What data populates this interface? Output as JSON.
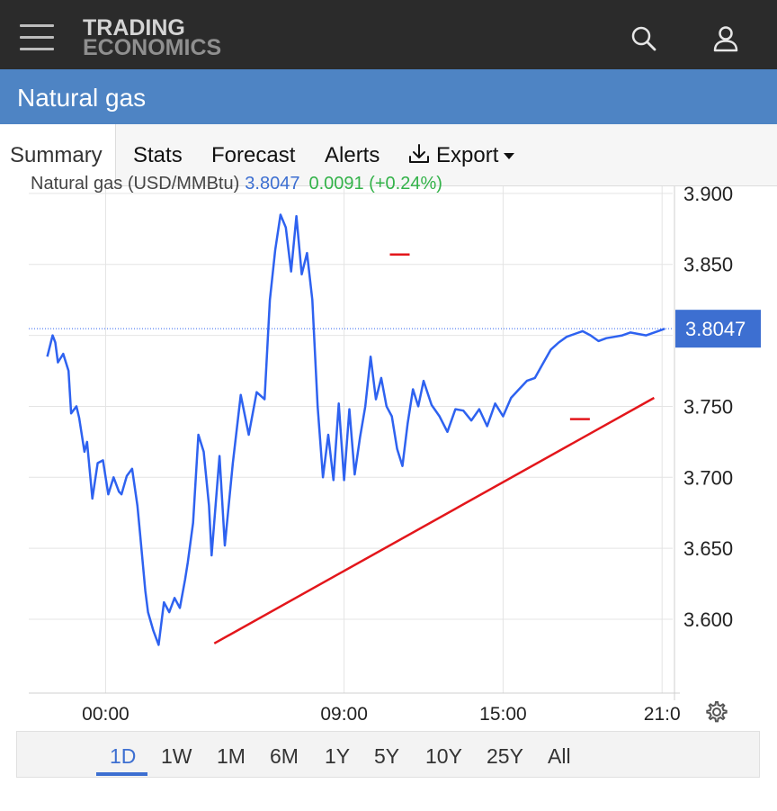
{
  "header": {
    "logo_line1": "TRADING",
    "logo_line2": "ECONOMICS",
    "icons": [
      "menu-icon",
      "search-icon",
      "user-icon"
    ]
  },
  "page_title": "Natural gas",
  "tabs": [
    {
      "label": "Summary",
      "active": true
    },
    {
      "label": "Stats"
    },
    {
      "label": "Forecast"
    },
    {
      "label": "Alerts"
    },
    {
      "label": "Export",
      "icon": "download-icon",
      "dropdown": true
    }
  ],
  "legend": {
    "name": "Natural gas (USD/MMBtu)",
    "price": "3.8047",
    "change": "0.0091 (+0.24%)"
  },
  "colors": {
    "header_bg": "#2b2b2b",
    "title_bg": "#4e84c4",
    "line": "#2e62f0",
    "trendline": "#e3161b",
    "price_label_bg": "#3d6fd1",
    "change_positive": "#33b249"
  },
  "chart_data": {
    "type": "line",
    "series": [
      {
        "name": "Natural gas (USD/MMBtu)",
        "x": [
          -2.2,
          -2.0,
          -1.9,
          -1.8,
          -1.6,
          -1.4,
          -1.3,
          -1.1,
          -1.0,
          -0.8,
          -0.7,
          -0.5,
          -0.3,
          -0.1,
          0.1,
          0.3,
          0.5,
          0.6,
          0.8,
          1.0,
          1.2,
          1.3,
          1.5,
          1.6,
          1.8,
          2.0,
          2.2,
          2.4,
          2.6,
          2.8,
          3.0,
          3.1,
          3.3,
          3.5,
          3.7,
          3.9,
          4.0,
          4.3,
          4.5,
          4.8,
          5.1,
          5.4,
          5.7,
          6.0,
          6.2,
          6.4,
          6.6,
          6.8,
          7.0,
          7.2,
          7.4,
          7.6,
          7.8,
          8.0,
          8.2,
          8.4,
          8.6,
          8.8,
          9.0,
          9.2,
          9.4,
          9.6,
          9.8,
          10.0,
          10.2,
          10.4,
          10.6,
          10.8,
          11.0,
          11.2,
          11.4,
          11.6,
          11.8,
          12.0,
          12.3,
          12.6,
          12.9,
          13.2,
          13.5,
          13.8,
          14.1,
          14.4,
          14.7,
          15.0,
          15.3,
          15.6,
          15.9,
          16.2,
          16.5,
          16.8,
          17.1,
          17.4,
          17.7,
          18.0,
          18.3,
          18.6,
          18.9,
          19.2,
          19.5,
          19.8,
          20.1,
          20.4,
          20.7,
          21.0,
          21.1
        ],
        "y": [
          3.785,
          3.8,
          3.795,
          3.781,
          3.787,
          3.775,
          3.745,
          3.75,
          3.742,
          3.718,
          3.725,
          3.685,
          3.71,
          3.712,
          3.688,
          3.7,
          3.69,
          3.688,
          3.701,
          3.706,
          3.68,
          3.66,
          3.62,
          3.605,
          3.592,
          3.582,
          3.612,
          3.605,
          3.615,
          3.608,
          3.628,
          3.64,
          3.668,
          3.73,
          3.718,
          3.68,
          3.645,
          3.715,
          3.652,
          3.71,
          3.758,
          3.73,
          3.76,
          3.755,
          3.825,
          3.86,
          3.885,
          3.876,
          3.845,
          3.884,
          3.843,
          3.858,
          3.825,
          3.75,
          3.7,
          3.73,
          3.698,
          3.752,
          3.698,
          3.748,
          3.702,
          3.728,
          3.75,
          3.785,
          3.755,
          3.77,
          3.75,
          3.743,
          3.72,
          3.708,
          3.738,
          3.762,
          3.75,
          3.768,
          3.751,
          3.743,
          3.732,
          3.748,
          3.747,
          3.74,
          3.748,
          3.736,
          3.752,
          3.743,
          3.756,
          3.762,
          3.768,
          3.77,
          3.78,
          3.79,
          3.795,
          3.799,
          3.801,
          3.803,
          3.8,
          3.796,
          3.798,
          3.799,
          3.8,
          3.802,
          3.801,
          3.8,
          3.802,
          3.804,
          3.8047
        ]
      }
    ],
    "trendline": {
      "x": [
        4.1,
        20.7
      ],
      "y": [
        3.583,
        3.756
      ]
    },
    "markers": [
      {
        "x": 11.1,
        "y": 3.857
      },
      {
        "x": 17.9,
        "y": 3.741
      }
    ],
    "last_price": 3.8047,
    "xlabels": [
      "00:00",
      "09:00",
      "15:00",
      "21:0"
    ],
    "xticks": [
      0,
      9,
      15,
      21
    ],
    "yticks": [
      3.9,
      3.85,
      3.8,
      3.75,
      3.7,
      3.65,
      3.6
    ],
    "ytick_labels": [
      "3.900",
      "3.850",
      "",
      "3.750",
      "3.700",
      "3.650",
      "3.600"
    ],
    "ylim": [
      3.548,
      3.905
    ],
    "xlim": [
      -2.9,
      21.4
    ],
    "grid": true
  },
  "ranges": [
    {
      "label": "1D",
      "active": true
    },
    {
      "label": "1W"
    },
    {
      "label": "1M"
    },
    {
      "label": "6M"
    },
    {
      "label": "1Y"
    },
    {
      "label": "5Y"
    },
    {
      "label": "10Y"
    },
    {
      "label": "25Y"
    },
    {
      "label": "All"
    }
  ]
}
